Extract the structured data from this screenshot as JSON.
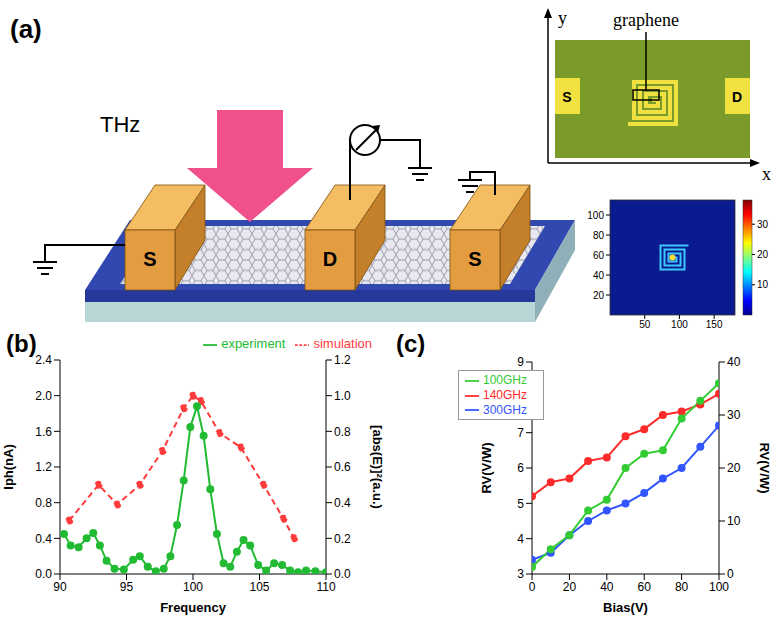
{
  "diagram": {
    "label": "(a)",
    "source": "THz",
    "electrodes": [
      "S",
      "D",
      "S"
    ],
    "inset": {
      "label": "graphene",
      "x_axis": "x",
      "y_axis": "y",
      "electrodes": [
        "S",
        "D"
      ]
    },
    "field_map": {
      "xlim": [
        0,
        180
      ],
      "xticks": [
        50,
        100,
        150
      ],
      "ylim": [
        0,
        115
      ],
      "yticks": [
        20,
        40,
        60,
        80,
        100
      ],
      "colorbar_range": [
        0,
        38
      ],
      "colorbar_ticks": [
        10,
        20,
        30
      ]
    }
  },
  "chart_data": [
    {
      "label": "(b)",
      "type": "line",
      "x_label": "Frequency",
      "y_label": "Iph(nA)",
      "y2_label": "[abs(E)]²(a.u.)",
      "xlim": [
        90,
        110
      ],
      "xticks": [
        90,
        95,
        100,
        105,
        110
      ],
      "ylim": [
        0,
        2.4
      ],
      "yticks": [
        {
          "value": 0,
          "label": "0.0"
        },
        {
          "value": 0.4,
          "label": "0.4"
        },
        {
          "value": 0.8,
          "label": "0.8"
        },
        {
          "value": 1.2,
          "label": "1.2"
        },
        {
          "value": 1.6,
          "label": "1.6"
        },
        {
          "value": 2.0,
          "label": "2.0"
        },
        {
          "value": 2.4,
          "label": "2.4"
        }
      ],
      "y2lim": [
        0,
        1.2
      ],
      "y2ticks": [
        {
          "value": 0,
          "label": "0.0"
        },
        {
          "value": 0.2,
          "label": "0.2"
        },
        {
          "value": 0.4,
          "label": "0.4"
        },
        {
          "value": 0.6,
          "label": "0.6"
        },
        {
          "value": 0.8,
          "label": "0.8"
        },
        {
          "value": 1.0,
          "label": "1.0"
        },
        {
          "value": 1.2,
          "label": "1.2"
        }
      ],
      "legend": "top",
      "series": [
        {
          "name": "simulation",
          "color": "#ff3b3b",
          "line_style": "dashed",
          "marker": "circle",
          "axis": "y2",
          "x": [
            90.7,
            92.9,
            94.3,
            96.0,
            97.7,
            99.3,
            100.0,
            100.6,
            102.0,
            103.6,
            105.3,
            106.8,
            107.6
          ],
          "values": [
            0.3,
            0.5,
            0.39,
            0.5,
            0.69,
            0.93,
            1.0,
            0.97,
            0.79,
            0.71,
            0.5,
            0.31,
            0.2
          ]
        },
        {
          "name": "experiment",
          "color": "#22bb33",
          "line_style": "solid",
          "marker": "circle",
          "x": [
            90.3,
            90.8,
            91.4,
            92.0,
            92.5,
            93.0,
            93.5,
            94.1,
            94.8,
            95.5,
            96.0,
            96.6,
            97.2,
            97.8,
            98.3,
            98.8,
            99.3,
            99.8,
            100.3,
            100.8,
            101.3,
            101.8,
            102.3,
            102.8,
            103.3,
            103.8,
            104.3,
            104.9,
            105.5,
            106.1,
            106.7,
            107.3,
            107.9,
            108.5,
            109.2,
            110.0
          ],
          "values": [
            0.45,
            0.32,
            0.3,
            0.4,
            0.46,
            0.32,
            0.15,
            0.06,
            0.05,
            0.16,
            0.2,
            0.08,
            0.03,
            0.06,
            0.2,
            0.55,
            1.05,
            1.65,
            1.88,
            1.55,
            0.95,
            0.45,
            0.12,
            0.08,
            0.25,
            0.38,
            0.32,
            0.1,
            0.04,
            0.12,
            0.1,
            0.04,
            0.02,
            0.04,
            0.03,
            0.02
          ]
        }
      ]
    },
    {
      "label": "(c)",
      "type": "line",
      "x_label": "Bias(V)",
      "y_label": "RV(V/W)",
      "y2_label": "RV(V/W)",
      "xlim": [
        0,
        100
      ],
      "xticks": [
        0,
        20,
        40,
        60,
        80,
        100
      ],
      "ylim": [
        3,
        9
      ],
      "yticks": [
        3,
        4,
        5,
        6,
        7,
        8,
        9
      ],
      "y2lim": [
        0,
        40
      ],
      "y2ticks": [
        0,
        10,
        20,
        30,
        40
      ],
      "legend": "upper left",
      "x": [
        0,
        10,
        20,
        30,
        40,
        50,
        60,
        70,
        80,
        90,
        100
      ],
      "series": [
        {
          "name": "300GHz",
          "color": "#3355ff",
          "marker": "circle",
          "axis": "y2",
          "values": [
            2.7,
            4.0,
            7.3,
            10.0,
            12.0,
            13.3,
            15.3,
            18.0,
            20.0,
            24.0,
            28.0
          ]
        },
        {
          "name": "140GHz",
          "color": "#ff2a2a",
          "marker": "circle",
          "values": [
            5.2,
            5.6,
            5.7,
            6.2,
            6.3,
            6.9,
            7.1,
            7.5,
            7.6,
            7.8,
            8.1
          ]
        },
        {
          "name": "100GHz",
          "color": "#33cc33",
          "marker": "circle",
          "values": [
            3.2,
            3.7,
            4.1,
            4.8,
            5.1,
            6.0,
            6.4,
            6.5,
            7.4,
            7.9,
            8.4
          ]
        }
      ]
    }
  ]
}
